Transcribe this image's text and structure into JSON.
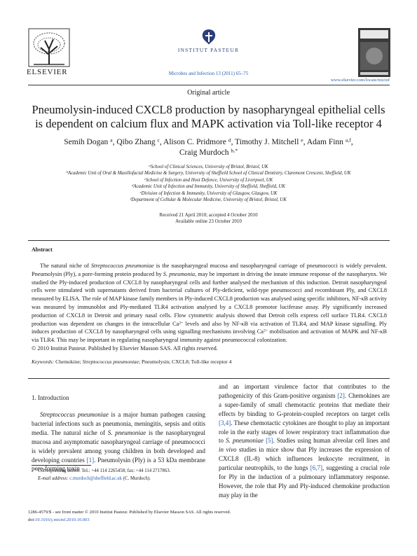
{
  "masthead": {
    "publisher": "ELSEVIER",
    "institute": "INSTITUT PASTEUR",
    "journal_citation": "Microbes and Infection 13 (2011) 65–75",
    "url": "www.elsevier.com/locate/micinf"
  },
  "article_type": "Original article",
  "title": [
    "Pneumolysin-induced CXCL8 production by nasopharyngeal epithelial cells",
    "is dependent on calcium flux and MAPK activation via Toll-like receptor 4"
  ],
  "authors": [
    [
      "Semih Dogan ",
      {
        "sup": "a"
      },
      ", Qibo Zhang ",
      {
        "sup": "c"
      },
      ", Alison C. Pridmore ",
      {
        "sup": "d"
      },
      ", Timothy J. Mitchell ",
      {
        "sup": "e"
      },
      ", Adam Finn ",
      {
        "sup": "a,f"
      },
      ","
    ],
    [
      "Craig Murdoch ",
      {
        "sup": "b,*"
      }
    ]
  ],
  "affiliations": [
    {
      "label": "a",
      "text": "School of Clinical Sciences, University of Bristol, Bristol, UK"
    },
    {
      "label": "b",
      "text": "Academic Unit of Oral & Maxillofacial Medicine & Surgery, University of Sheffield School of Clinical Dentistry, Claremont Crescent, Sheffield, UK"
    },
    {
      "label": "c",
      "text": "School of Infection and Host Defence, University of Liverpool, UK"
    },
    {
      "label": "d",
      "text": "Academic Unit of Infection and Immunity, University of Sheffield, Sheffield, UK"
    },
    {
      "label": "e",
      "text": "Division of Infection & Immunity, University of Glasgow, Glasgow, UK"
    },
    {
      "label": "f",
      "text": "Department of Cellular & Molecular Medicine, University of Bristol, Bristol, UK"
    }
  ],
  "dates": [
    "Received 21 April 2010; accepted 4 October 2010",
    "Available online 23 October 2010"
  ],
  "abstract": {
    "heading": "Abstract",
    "paragraph": [
      "The natural niche of ",
      {
        "italic": "Streptococcus pneumoniae"
      },
      " is the nasopharyngeal mucosa and nasopharyngeal carriage of pneumococci is widely prevalent. Pneumolysin (Ply), a pore-forming protein produced by ",
      {
        "italic": "S. pneumonia"
      },
      ", may be important in driving the innate immune response of the nasopharynx. We studied the Ply-induced production of CXCL8 by nasopharyngeal cells and further analysed the mechanism of this induction. Detroit nasopharyngeal cells were stimulated with supernatants derived from bacterial cultures of Ply-deficient, wild-type pneumococci and recombinant Ply, and CXCL8 measured by ELISA. The role of MAP kinase family members in Ply-induced CXCL8 production was analysed using specific inhibitors, NF-κB activity was measured by immunoblot and Ply-mediated TLR4 activation analysed by a CXCL8 promotor luciferase assay. Ply significantly increased production of CXCL8 in Detroit and primary nasal cells. Flow cytometric analysis showed that Detroit cells express cell surface TLR4. CXCL8 production was dependent on changes in the intracellular Ca",
      {
        "sup": "2+"
      },
      " levels and also by NF-κB via activation of TLR4, and MAP kinase signalling. Ply induces production of CXCL8 by nasopharyngeal cells using signalling mechanisms involving Ca",
      {
        "sup": "2+"
      },
      " mobilisation and activation of MAPK and NF-κB via TLR4. This may be important in regulating nasopharyngeal immunity against pneumococcal colonization."
    ],
    "copyright": "© 2010 Institut Pasteur. Published by Elsevier Masson SAS. All rights reserved.",
    "keywords": [
      {
        "italic": "Keywords:"
      },
      " Chemokine; ",
      {
        "italic": "Streptococcus pneumoniae"
      },
      "; Pneumolysin; CXCL8; Toll-like receptor 4"
    ]
  },
  "introduction": {
    "heading": "1. Introduction",
    "left_column": [
      {
        "italic": "Streptococcus pneumoniae"
      },
      " is a major human pathogen causing bacterial infections such as pneumonia, meningitis, sepsis and otitis media. The natural niche of ",
      {
        "italic": "S. pneumoniae"
      },
      " is the nasopharyngeal mucosa and asymptomatic nasopharyngeal carriage of pneumococci is widely prevalent among young children in both developed and developing countries ",
      {
        "ref": "[1]"
      },
      ". Pneumolysin (Ply) is a 53 kDa membrane pore-forming toxin"
    ],
    "right_column": [
      "and an important virulence factor that contributes to the pathogenicity of this Gram-positive organism ",
      {
        "ref": "[2]"
      },
      ". Chemokines are a super-family of small chemotactic proteins that mediate their effects by binding to G-protein-coupled receptors on target cells ",
      {
        "ref": "[3,4]"
      },
      ". These chemotactic cytokines are thought to play an important role in the early stages of lower respiratory tract inflammation due to ",
      {
        "italic": "S. pneumoniae"
      },
      " ",
      {
        "ref": "[5]"
      },
      ". Studies using human alveolar cell lines and ",
      {
        "italic": "in vivo"
      },
      " studies in mice show that Ply increases the expression of CXCL8 (IL-8) which influences leukocyte recruitment, in particular neutrophils, to the lungs ",
      {
        "ref": "[6,7]"
      },
      ", suggesting a crucial role for Ply in the induction of a pulmonary inflammatory response. However, the role that Ply and Ply-induced chemokine production may play in the"
    ]
  },
  "footnote": [
    [
      {
        "sup": "*"
      },
      " Corresponding author. Tel.: +44 114 2265458; fax: +44 114 2717863."
    ],
    [
      {
        "italic": "E-mail address:"
      },
      " ",
      {
        "link": "c.murdoch@sheffield.ac.uk"
      },
      " (C. Murdoch)."
    ]
  ],
  "footer": [
    [
      "1286-4579/$ - see front matter © 2010 Institut Pasteur. Published by Elsevier Masson SAS. All rights reserved."
    ],
    [
      "doi:",
      {
        "link": "10.1016/j.micinf.2010.10.003"
      }
    ]
  ]
}
